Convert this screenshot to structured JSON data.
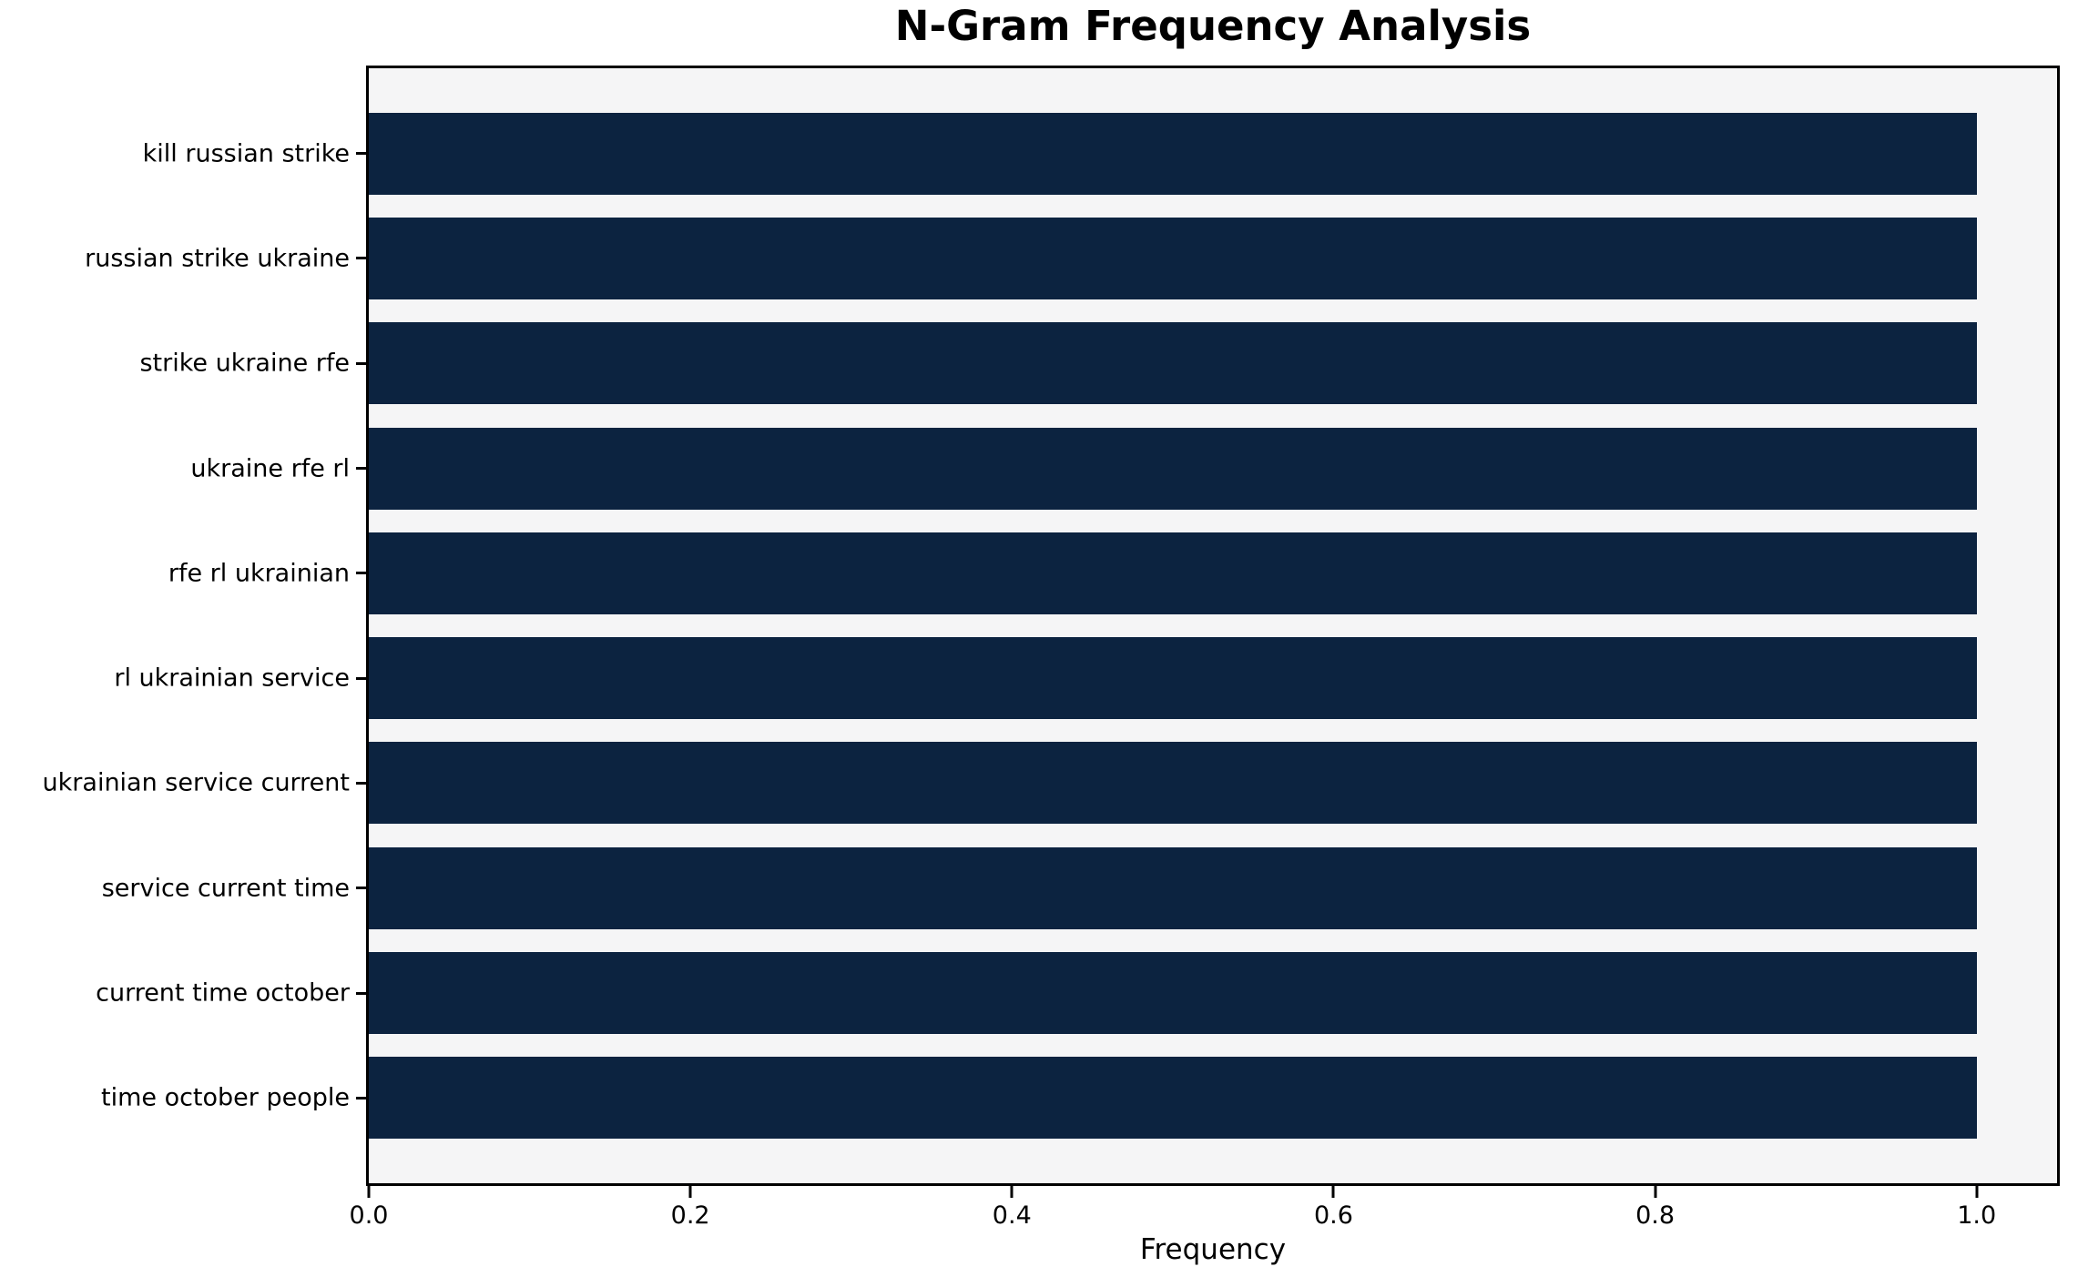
{
  "chart_data": {
    "type": "bar",
    "orientation": "horizontal",
    "title": "N-Gram Frequency Analysis",
    "xlabel": "Frequency",
    "ylabel": "",
    "categories": [
      "kill russian strike",
      "russian strike ukraine",
      "strike ukraine rfe",
      "ukraine rfe rl",
      "rfe rl ukrainian",
      "rl ukrainian service",
      "ukrainian service current",
      "service current time",
      "current time october",
      "time october people"
    ],
    "values": [
      1.0,
      1.0,
      1.0,
      1.0,
      1.0,
      1.0,
      1.0,
      1.0,
      1.0,
      1.0
    ],
    "xlim": [
      0.0,
      1.05
    ],
    "xticks": [
      {
        "value": 0.0,
        "label": "0.0"
      },
      {
        "value": 0.2,
        "label": "0.2"
      },
      {
        "value": 0.4,
        "label": "0.4"
      },
      {
        "value": 0.6,
        "label": "0.6"
      },
      {
        "value": 0.8,
        "label": "0.8"
      },
      {
        "value": 1.0,
        "label": "1.0"
      }
    ],
    "grid": false,
    "legend_position": "none",
    "bar_color": "#0c2340",
    "plot_background": "#f5f5f6",
    "figure_background": "#ffffff",
    "text_color": "#000000"
  }
}
